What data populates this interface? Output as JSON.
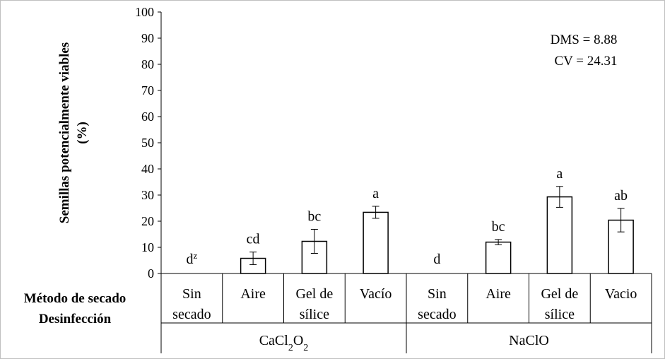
{
  "chart_data": {
    "type": "bar",
    "ylabel_line1": "Semillas potencialmente viables",
    "ylabel_line2": "(%)",
    "ylim": [
      0,
      100
    ],
    "yticks": [
      0,
      10,
      20,
      30,
      40,
      50,
      60,
      70,
      80,
      90,
      100
    ],
    "row_labels": [
      "Método de secado",
      "Desinfección"
    ],
    "groups": [
      {
        "name": "CaCl",
        "name_sub1": "2",
        "name_mid": "O",
        "name_sub2": "2",
        "bars": [
          {
            "line1": "Sin",
            "line2": "secado",
            "value": 0,
            "error": 0,
            "letter": "d",
            "letter_sup": "z"
          },
          {
            "line1": "Aire",
            "line2": "",
            "value": 5.8,
            "error": 2.4,
            "letter": "cd",
            "letter_sup": ""
          },
          {
            "line1": "Gel de",
            "line2": "sílice",
            "value": 12.3,
            "error": 4.6,
            "letter": "bc",
            "letter_sup": ""
          },
          {
            "line1": "Vacío",
            "line2": "",
            "value": 23.4,
            "error": 2.3,
            "letter": "a",
            "letter_sup": ""
          }
        ]
      },
      {
        "name": "NaClO",
        "name_sub1": "",
        "name_mid": "",
        "name_sub2": "",
        "bars": [
          {
            "line1": "Sin",
            "line2": "secado",
            "value": 0,
            "error": 0,
            "letter": "d",
            "letter_sup": ""
          },
          {
            "line1": "Aire",
            "line2": "",
            "value": 12.0,
            "error": 1.0,
            "letter": "bc",
            "letter_sup": ""
          },
          {
            "line1": "Gel de",
            "line2": "sílice",
            "value": 29.3,
            "error": 4.0,
            "letter": "a",
            "letter_sup": ""
          },
          {
            "line1": "Vacio",
            "line2": "",
            "value": 20.4,
            "error": 4.5,
            "letter": "ab",
            "letter_sup": ""
          }
        ]
      }
    ],
    "stats": [
      "DMS = 8.88",
      "CV = 24.31"
    ],
    "colors": {
      "bar_fill": "#ffffff",
      "bar_stroke": "#000000",
      "axis": "#000000"
    }
  }
}
